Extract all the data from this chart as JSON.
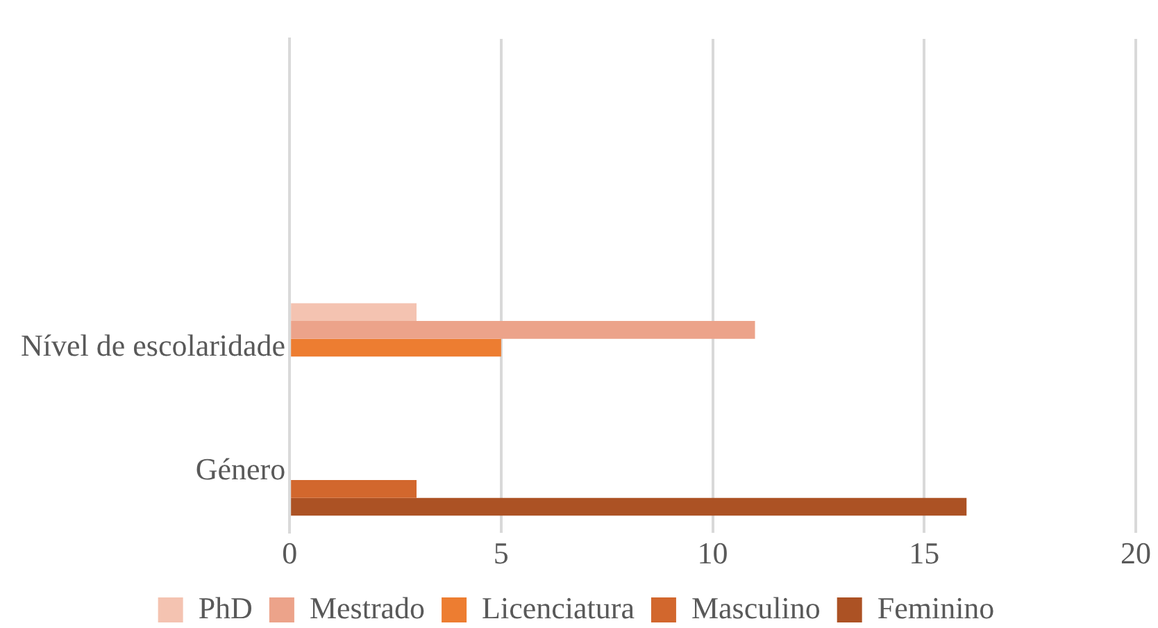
{
  "chart_data": {
    "type": "bar",
    "orientation": "horizontal",
    "categories": [
      null,
      null,
      "Nível de escolaridade",
      "Género"
    ],
    "series": [
      {
        "name": "PhD",
        "color": "#f4c3b1",
        "values": [
          null,
          null,
          3,
          null
        ]
      },
      {
        "name": "Mestrado",
        "color": "#eca38a",
        "values": [
          null,
          null,
          11,
          null
        ]
      },
      {
        "name": "Licenciatura",
        "color": "#ed7d31",
        "values": [
          null,
          null,
          5,
          null
        ]
      },
      {
        "name": "Masculino",
        "color": "#d2672d",
        "values": [
          null,
          null,
          null,
          3
        ]
      },
      {
        "name": "Feminino",
        "color": "#ac5224",
        "values": [
          null,
          null,
          null,
          16
        ]
      }
    ],
    "xlim": [
      0,
      20
    ],
    "xticks": [
      0,
      5,
      10,
      15,
      20
    ],
    "grid": "x",
    "legend": "bottom"
  }
}
